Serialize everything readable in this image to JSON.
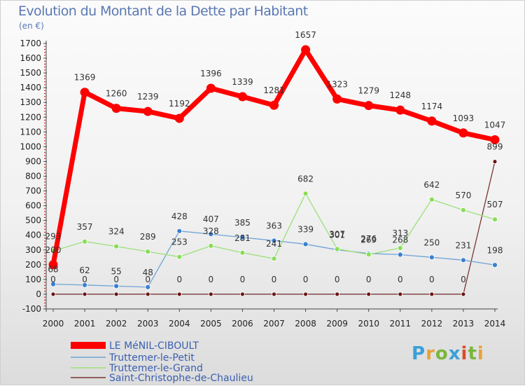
{
  "title": "Evolution du Montant de la Dette par Habitant",
  "unit_label": "(en €)",
  "logo_text": "Proxiti",
  "chart_data": {
    "type": "line",
    "title": "Evolution du Montant de la Dette par Habitant",
    "ylabel": "(en €)",
    "xlabel": "",
    "x": [
      "2000",
      "2001",
      "2002",
      "2003",
      "2004",
      "2005",
      "2006",
      "2007",
      "2008",
      "2009",
      "2010",
      "2011",
      "2012",
      "2013",
      "2014"
    ],
    "ylim": [
      -100,
      1700
    ],
    "yticks": [
      -100,
      0,
      100,
      200,
      300,
      400,
      500,
      600,
      700,
      800,
      900,
      1000,
      1100,
      1200,
      1300,
      1400,
      1500,
      1600,
      1700
    ],
    "grid": false,
    "legend": "bottom-left",
    "series": [
      {
        "name": "LE MéNIL-CIBOULT",
        "color": "#ff0000",
        "values": [
          200,
          1369,
          1260,
          1239,
          1192,
          1396,
          1339,
          1281,
          1657,
          1323,
          1279,
          1248,
          1174,
          1093,
          1047
        ]
      },
      {
        "name": "Truttemer-le-Petit",
        "color": "#3a7fd0",
        "values": [
          68,
          62,
          55,
          48,
          428,
          407,
          385,
          363,
          339,
          301,
          276,
          268,
          250,
          231,
          198
        ]
      },
      {
        "name": "Truttemer-le-Grand",
        "color": "#88dd55",
        "values": [
          293,
          357,
          324,
          289,
          253,
          328,
          281,
          241,
          682,
          307,
          269,
          313,
          642,
          570,
          507
        ]
      },
      {
        "name": "Saint-Christophe-de-Chaulieu",
        "color": "#6b1515",
        "values": [
          0,
          0,
          0,
          0,
          0,
          0,
          0,
          0,
          0,
          0,
          0,
          0,
          0,
          0,
          899
        ]
      }
    ]
  }
}
